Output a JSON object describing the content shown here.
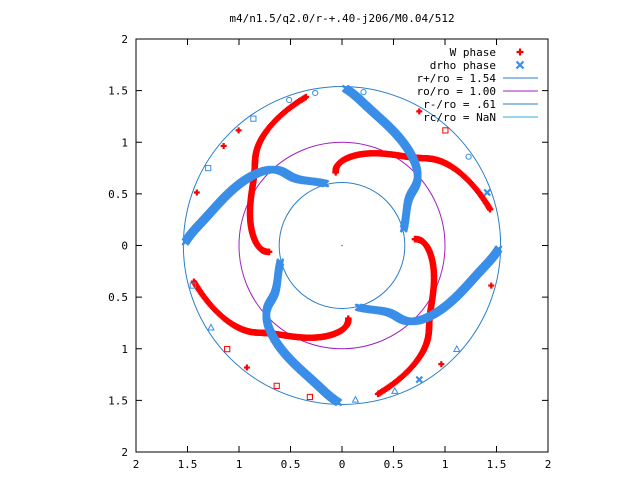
{
  "chart_data": {
    "type": "scatter",
    "title": "m4/n1.5/q2.0/r-+.40-j206/M0.04/512",
    "xlim": [
      -2,
      2
    ],
    "ylim": [
      -2,
      2
    ],
    "x_ticks": [
      {
        "v": -2,
        "label": "2"
      },
      {
        "v": -1.5,
        "label": "1.5"
      },
      {
        "v": -1,
        "label": "1"
      },
      {
        "v": -0.5,
        "label": "0.5"
      },
      {
        "v": 0,
        "label": "0"
      },
      {
        "v": 0.5,
        "label": "0.5"
      },
      {
        "v": 1,
        "label": "1"
      },
      {
        "v": 1.5,
        "label": "1.5"
      },
      {
        "v": 2,
        "label": "2"
      }
    ],
    "y_ticks": [
      {
        "v": 2,
        "label": "2"
      },
      {
        "v": 1.5,
        "label": "1.5"
      },
      {
        "v": 1,
        "label": "1"
      },
      {
        "v": 0.5,
        "label": "0.5"
      },
      {
        "v": 0,
        "label": "0"
      },
      {
        "v": -0.5,
        "label": "0.5"
      },
      {
        "v": -1,
        "label": "1"
      },
      {
        "v": -1.5,
        "label": "1.5"
      },
      {
        "v": -2,
        "label": "2"
      }
    ],
    "grid": false,
    "legend_position": "top-right",
    "series": [
      {
        "name": "W phase",
        "marker": "plus",
        "color": "#ff0000",
        "spiral": {
          "arms": 4,
          "r_inner": 0.71,
          "r_outer": 1.48,
          "angle_offset_deg": 95,
          "twist_deg": -80,
          "wobble": 0.13
        }
      },
      {
        "name": "drho phase",
        "marker": "cross",
        "color": "#3a8ee8",
        "spiral": {
          "arms": 4,
          "r_inner": 0.62,
          "r_outer": 1.52,
          "angle_offset_deg": 15,
          "twist_deg": 75,
          "wobble": 0.13
        }
      }
    ],
    "circles": [
      {
        "name": "r+/ro = 1.54",
        "r": 1.54,
        "color": "#2a7fc8"
      },
      {
        "name": "ro/ro = 1.00",
        "r": 1.0,
        "color": "#a020c0"
      },
      {
        "name": "r-/ro = .61",
        "r": 0.61,
        "color": "#2a7fc8"
      },
      {
        "name": "rc/ro = NaN",
        "r": null,
        "color": "#30a8d8"
      }
    ],
    "scatter_outliers_r": 1.5
  }
}
